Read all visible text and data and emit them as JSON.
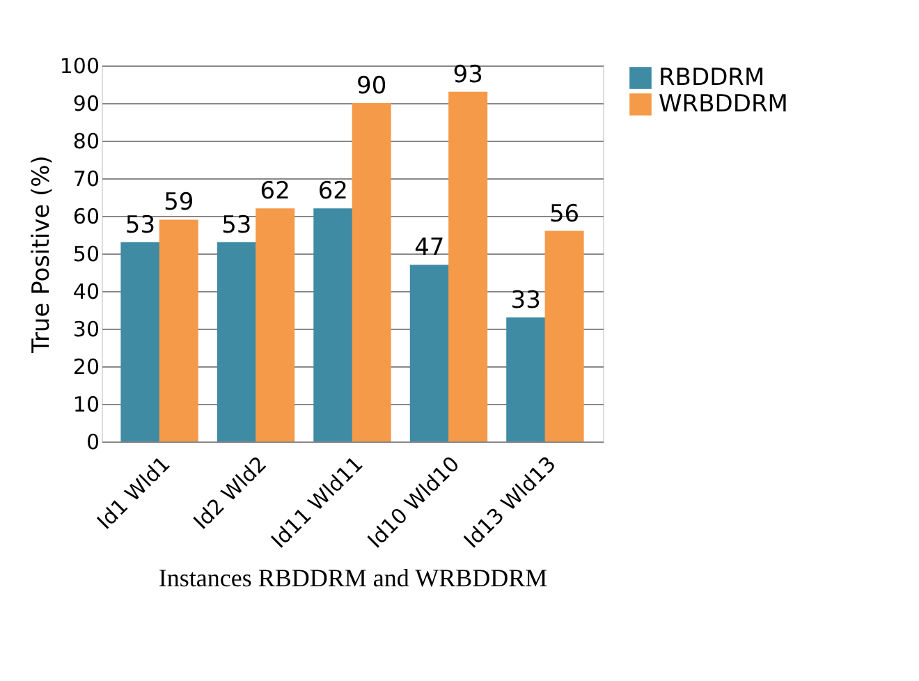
{
  "chart_data": {
    "type": "bar",
    "xlabel": "Instances RBDDRM  and WRBDDRM",
    "ylabel": "True Positive (%)",
    "categories": [
      "Id1     Wld1",
      "Id2     Wld2",
      "Id11   Wld11",
      "Id10   Wld10",
      "Id13   Wld13"
    ],
    "series": [
      {
        "name": "RBDDRM",
        "color": "#3e8ba3",
        "values": [
          53,
          53,
          62,
          47,
          33
        ]
      },
      {
        "name": "WRBDDRM",
        "color": "#f59a48",
        "values": [
          59,
          62,
          90,
          93,
          56
        ]
      }
    ],
    "ylim": [
      0,
      100
    ],
    "yticks": [
      0,
      10,
      20,
      30,
      40,
      50,
      60,
      70,
      80,
      90,
      100
    ],
    "grid": "y",
    "legend": "right",
    "data_labels": true
  }
}
